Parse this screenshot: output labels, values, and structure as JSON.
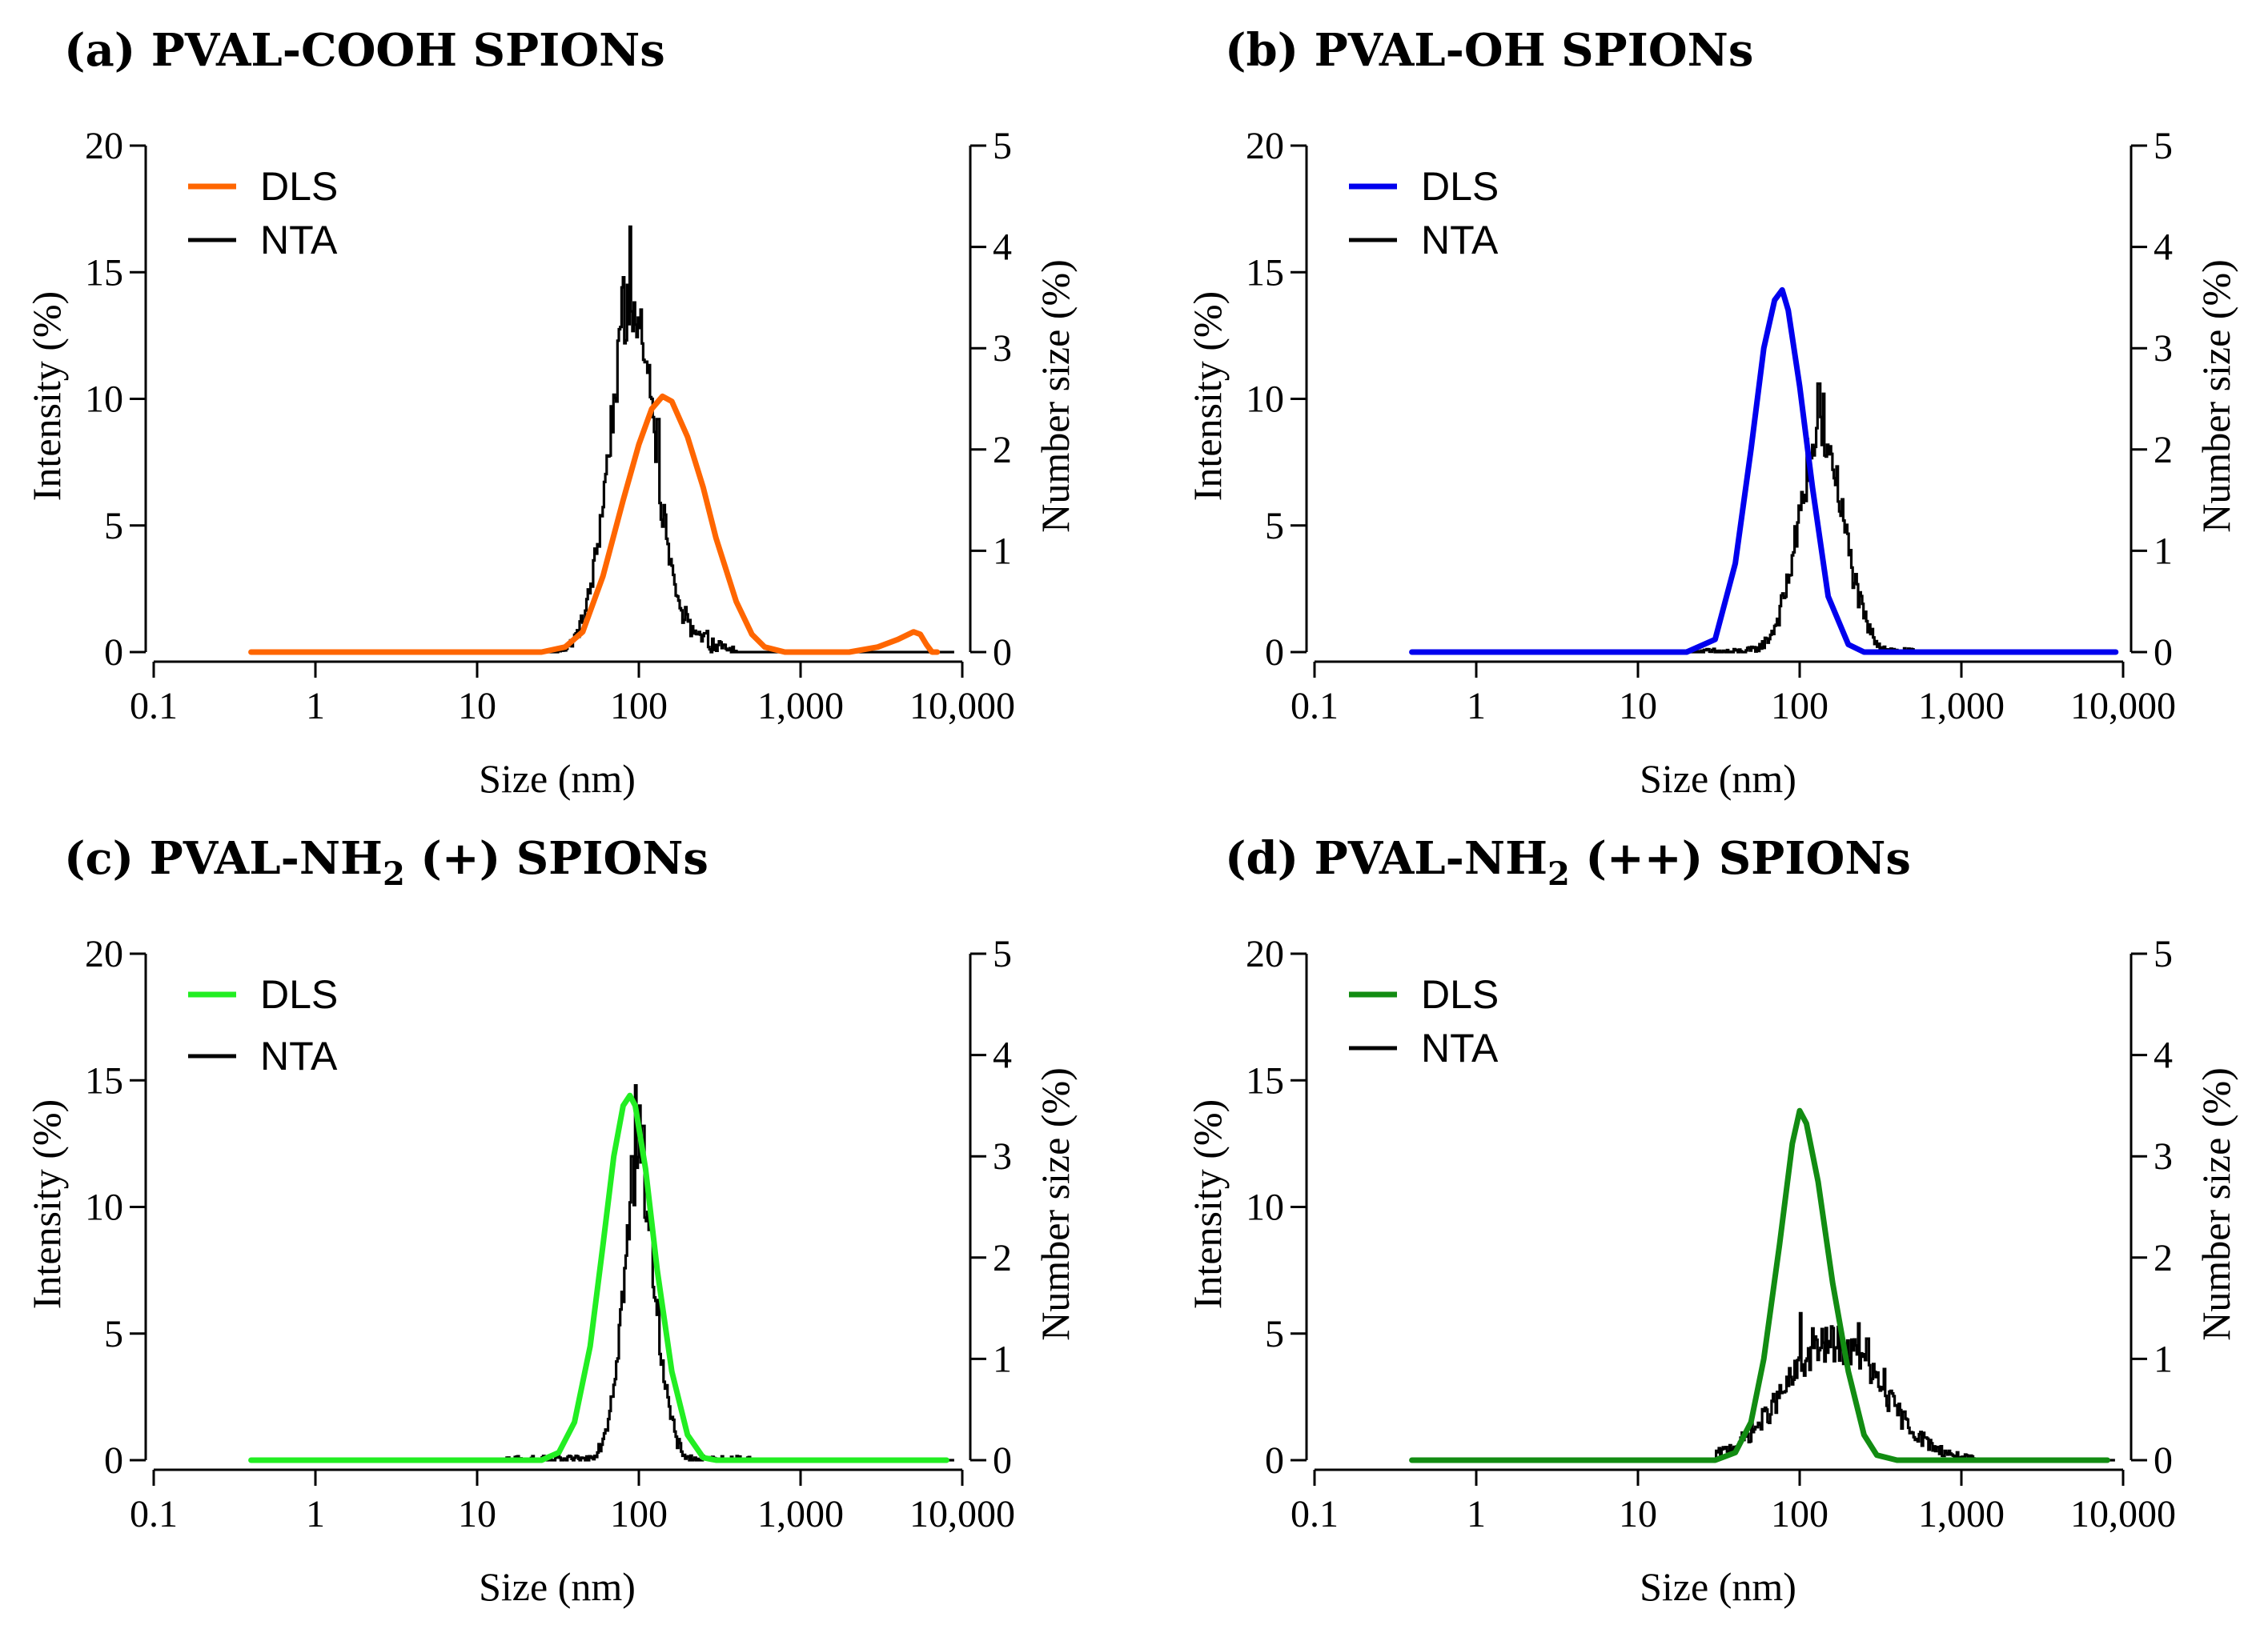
{
  "chart_data": [
    {
      "type": "line",
      "panel_title": "(a) PVAL-COOH SPIONs",
      "title_main": "(a) PVAL-COOH SPIONs",
      "title_sub": "",
      "title_suffix": "",
      "dls_color": "#ff6600",
      "xlabel": "Size (nm)",
      "ylabel_left": "Intensity (%)",
      "ylabel_right": "Number size (%)",
      "xscale": "log",
      "xlim": [
        0.1,
        10000
      ],
      "ylim_left": [
        0,
        20
      ],
      "ylim_right": [
        0,
        5
      ],
      "xticks": [
        "0.1",
        "1",
        "10",
        "100",
        "1,000",
        "10,000"
      ],
      "yticks_left": [
        "0",
        "5",
        "10",
        "15",
        "20"
      ],
      "yticks_right": [
        "0",
        "1",
        "2",
        "3",
        "4",
        "5"
      ],
      "legend": [
        "DLS",
        "NTA"
      ],
      "dls": {
        "x": [
          0.4,
          1,
          10,
          25,
          35,
          45,
          60,
          80,
          100,
          120,
          140,
          160,
          200,
          250,
          300,
          400,
          500,
          600,
          800,
          1000,
          2000,
          3000,
          4000,
          5000,
          5500,
          6000,
          6500,
          7000
        ],
        "y": [
          0,
          0,
          0,
          0,
          0.2,
          0.8,
          3.0,
          6.0,
          8.2,
          9.6,
          10.1,
          9.9,
          8.5,
          6.5,
          4.5,
          2.0,
          0.7,
          0.2,
          0,
          0,
          0,
          0.2,
          0.5,
          0.8,
          0.7,
          0.3,
          0,
          0
        ]
      },
      "nta": {
        "center": 90,
        "sigma": 0.14,
        "peak": 3.4,
        "noise": 0.3,
        "spikes": [
          [
            88,
            4.2
          ],
          [
            80,
            3.7
          ],
          [
            78,
            3.6
          ],
          [
            100,
            3.2
          ],
          [
            120,
            2.5
          ],
          [
            130,
            2.3
          ]
        ],
        "xmin": 30,
        "xmax": 400,
        "right_tail": 0.22
      }
    },
    {
      "type": "line",
      "panel_title": "(b) PVAL-OH SPIONs",
      "title_main": "(b) PVAL-OH SPIONs",
      "title_sub": "",
      "title_suffix": "",
      "dls_color": "#0000ee",
      "xlabel": "Size (nm)",
      "ylabel_left": "Intensity (%)",
      "ylabel_right": "Number size (%)",
      "xscale": "log",
      "xlim": [
        0.1,
        10000
      ],
      "ylim_left": [
        0,
        20
      ],
      "ylim_right": [
        0,
        5
      ],
      "xticks": [
        "0.1",
        "1",
        "10",
        "100",
        "1,000",
        "10,000"
      ],
      "yticks_left": [
        "0",
        "5",
        "10",
        "15",
        "20"
      ],
      "yticks_right": [
        "0",
        "1",
        "2",
        "3",
        "4",
        "5"
      ],
      "legend": [
        "DLS",
        "NTA"
      ],
      "dls": {
        "x": [
          0.4,
          1,
          10,
          20,
          30,
          40,
          50,
          60,
          70,
          78,
          85,
          100,
          120,
          150,
          200,
          250,
          300,
          1000,
          9000
        ],
        "y": [
          0,
          0,
          0,
          0,
          0.5,
          3.5,
          8.0,
          12.0,
          13.9,
          14.3,
          13.5,
          10.5,
          6.5,
          2.2,
          0.3,
          0,
          0,
          0,
          0
        ]
      },
      "nta": {
        "center": 135,
        "sigma": 0.14,
        "peak": 2.1,
        "noise": 0.25,
        "spikes": [
          [
            130,
            2.65
          ],
          [
            140,
            2.55
          ],
          [
            110,
            2.1
          ],
          [
            160,
            1.8
          ]
        ],
        "xmin": 20,
        "xmax": 500,
        "right_tail": 0.0
      }
    },
    {
      "type": "line",
      "panel_title": "(c) PVAL-NH2 (+) SPIONs",
      "title_main": "(c) PVAL-NH",
      "title_sub": "2",
      "title_suffix": " (+) SPIONs",
      "dls_color": "#22ee22",
      "xlabel": "Size (nm)",
      "ylabel_left": "Intensity (%)",
      "ylabel_right": "Number size (%)",
      "xscale": "log",
      "xlim": [
        0.1,
        10000
      ],
      "ylim_left": [
        0,
        20
      ],
      "ylim_right": [
        0,
        5
      ],
      "xticks": [
        "0.1",
        "1",
        "10",
        "100",
        "1,000",
        "10,000"
      ],
      "yticks_left": [
        "0",
        "5",
        "10",
        "15",
        "20"
      ],
      "yticks_right": [
        "0",
        "1",
        "2",
        "3",
        "4",
        "5"
      ],
      "legend": [
        "DLS",
        "NTA"
      ],
      "dls": {
        "x": [
          0.4,
          1,
          10,
          25,
          32,
          40,
          50,
          60,
          70,
          80,
          88,
          95,
          110,
          130,
          160,
          200,
          250,
          300,
          1000,
          8000
        ],
        "y": [
          0,
          0,
          0,
          0,
          0.3,
          1.5,
          4.5,
          8.5,
          12.0,
          14.0,
          14.4,
          14.0,
          11.5,
          7.5,
          3.5,
          1.0,
          0.1,
          0,
          0,
          0
        ]
      },
      "nta": {
        "center": 100,
        "sigma": 0.1,
        "peak": 2.8,
        "noise": 0.3,
        "spikes": [
          [
            95,
            3.7
          ],
          [
            100,
            3.5
          ],
          [
            105,
            3.3
          ],
          [
            90,
            3.0
          ]
        ],
        "xmin": 15,
        "xmax": 500,
        "right_tail": 0.0
      }
    },
    {
      "type": "line",
      "panel_title": "(d) PVAL-NH2 (++) SPIONs",
      "title_main": "(d) PVAL-NH",
      "title_sub": "2",
      "title_suffix": " (++) SPIONs",
      "dls_color": "#128c12",
      "xlabel": "Size (nm)",
      "ylabel_left": "Intensity (%)",
      "ylabel_right": "Number size (%)",
      "xscale": "log",
      "xlim": [
        0.1,
        10000
      ],
      "ylim_left": [
        0,
        20
      ],
      "ylim_right": [
        0,
        5
      ],
      "xticks": [
        "0.1",
        "1",
        "10",
        "100",
        "1,000",
        "10,000"
      ],
      "yticks_left": [
        "0",
        "5",
        "10",
        "15",
        "20"
      ],
      "yticks_right": [
        "0",
        "1",
        "2",
        "3",
        "4",
        "5"
      ],
      "legend": [
        "DLS",
        "NTA"
      ],
      "dls": {
        "x": [
          0.4,
          1,
          10,
          30,
          40,
          50,
          60,
          75,
          90,
          100,
          110,
          130,
          160,
          200,
          250,
          300,
          400,
          1000,
          8000
        ],
        "y": [
          0,
          0,
          0,
          0,
          0.3,
          1.5,
          4.0,
          8.5,
          12.5,
          13.8,
          13.3,
          11.0,
          7.0,
          3.5,
          1.0,
          0.2,
          0,
          0,
          0
        ]
      },
      "nta": {
        "center": 160,
        "sigma": 0.3,
        "peak": 1.15,
        "noise": 0.18,
        "spikes": [
          [
            100,
            1.45
          ],
          [
            120,
            1.3
          ],
          [
            230,
            1.35
          ],
          [
            260,
            1.2
          ],
          [
            330,
            0.9
          ]
        ],
        "xmin": 30,
        "xmax": 1200,
        "right_tail": 0.0
      }
    }
  ]
}
